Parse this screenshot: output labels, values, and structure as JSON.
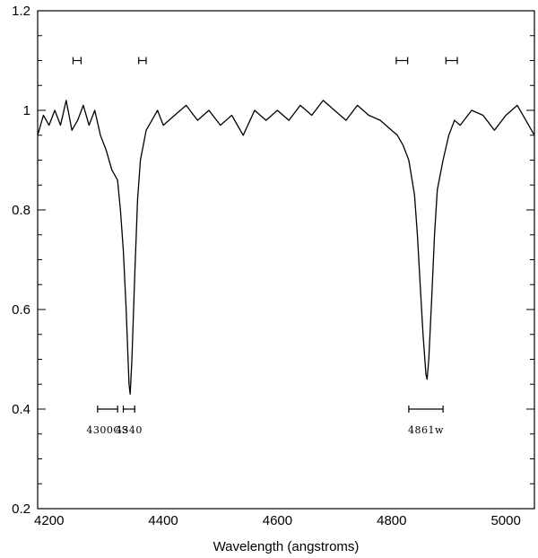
{
  "chart_data": {
    "type": "line",
    "xlabel": "Wavelength (angstroms)",
    "ylabel": "",
    "xlim": [
      4180,
      5050
    ],
    "ylim": [
      0.2,
      1.2
    ],
    "x_ticks": [
      4200,
      4400,
      4600,
      4800,
      5000
    ],
    "x_tick_labels": [
      "4200",
      "4400",
      "4600",
      "4800",
      "5000"
    ],
    "y_ticks": [
      0.2,
      0.4,
      0.6,
      0.8,
      1.0,
      1.2
    ],
    "y_tick_labels": [
      "0.2",
      "0.4",
      "0.6",
      "0.8",
      "1",
      "1.2"
    ],
    "grid": false,
    "series": [
      {
        "x": [
          4180,
          4190,
          4200,
          4210,
          4220,
          4230,
          4240,
          4250,
          4260,
          4270,
          4280,
          4290,
          4300,
          4310,
          4320,
          4325,
          4330,
          4335,
          4340,
          4342,
          4345,
          4350,
          4355,
          4360,
          4370,
          4380,
          4390,
          4400,
          4420,
          4440,
          4460,
          4480,
          4500,
          4520,
          4540,
          4560,
          4580,
          4600,
          4620,
          4640,
          4660,
          4680,
          4700,
          4720,
          4740,
          4760,
          4780,
          4800,
          4810,
          4820,
          4830,
          4840,
          4845,
          4850,
          4855,
          4860,
          4862,
          4865,
          4870,
          4875,
          4880,
          4890,
          4900,
          4910,
          4920,
          4940,
          4960,
          4980,
          5000,
          5020,
          5040,
          5050
        ],
        "y": [
          0.95,
          0.99,
          0.97,
          1.0,
          0.97,
          1.02,
          0.96,
          0.98,
          1.01,
          0.97,
          1.0,
          0.95,
          0.92,
          0.88,
          0.86,
          0.8,
          0.72,
          0.6,
          0.45,
          0.43,
          0.5,
          0.67,
          0.82,
          0.9,
          0.96,
          0.98,
          1.0,
          0.97,
          0.99,
          1.01,
          0.98,
          1.0,
          0.97,
          0.99,
          0.95,
          1.0,
          0.98,
          1.0,
          0.98,
          1.01,
          0.99,
          1.02,
          1.0,
          0.98,
          1.01,
          0.99,
          0.98,
          0.96,
          0.95,
          0.93,
          0.9,
          0.83,
          0.75,
          0.65,
          0.55,
          0.47,
          0.46,
          0.5,
          0.62,
          0.75,
          0.84,
          0.9,
          0.95,
          0.98,
          0.97,
          1.0,
          0.99,
          0.96,
          0.99,
          1.01,
          0.97,
          0.95
        ]
      }
    ],
    "annotations": [
      {
        "label": "4300GS",
        "x_start": 4285,
        "x_end": 4320,
        "y": 0.4
      },
      {
        "label": "4340",
        "x_start": 4330,
        "x_end": 4350,
        "y": 0.4
      },
      {
        "label": "4861w",
        "x_start": 4830,
        "x_end": 4890,
        "y": 0.4
      }
    ],
    "continuum_bands": [
      {
        "x_start": 4242,
        "x_end": 4256,
        "y": 1.1
      },
      {
        "x_start": 4357,
        "x_end": 4370,
        "y": 1.1
      },
      {
        "x_start": 4808,
        "x_end": 4828,
        "y": 1.1
      },
      {
        "x_start": 4895,
        "x_end": 4915,
        "y": 1.1
      }
    ]
  }
}
